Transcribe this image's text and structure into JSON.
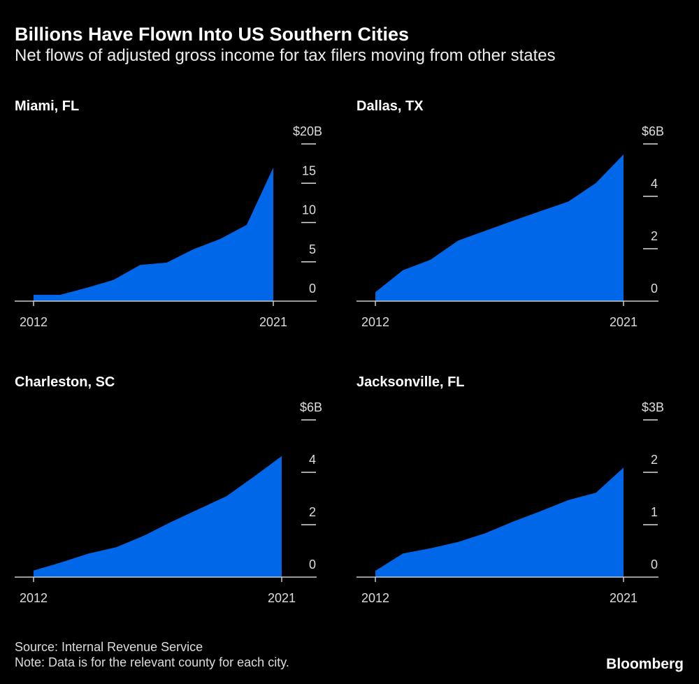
{
  "title": "Billions Have Flown Into US Southern Cities",
  "subtitle": "Net flows of adjusted gross income for tax filers moving from other states",
  "source": "Source: Internal Revenue Service",
  "note": "Note: Data is for the relevant county for each city.",
  "brand": "Bloomberg",
  "fill_color": "#0068e8",
  "chart_data": [
    {
      "type": "area",
      "title": "Miami, FL",
      "x": [
        2012,
        2013,
        2014,
        2015,
        2016,
        2017,
        2018,
        2019,
        2020,
        2021
      ],
      "values": [
        0.8,
        0.8,
        1.7,
        2.7,
        4.6,
        4.9,
        6.6,
        7.9,
        9.7,
        17.0
      ],
      "ylim": [
        0,
        20
      ],
      "yticks": [
        0,
        5,
        10,
        15,
        20
      ],
      "ytick_labels": [
        "0",
        "5",
        "10",
        "15",
        "$20B"
      ],
      "xtick_labels": [
        "2012",
        "2021"
      ],
      "grid": false
    },
    {
      "type": "area",
      "title": "Dallas, TX",
      "x": [
        2012,
        2013,
        2014,
        2015,
        2016,
        2017,
        2018,
        2019,
        2020,
        2021
      ],
      "values": [
        0.34,
        1.18,
        1.58,
        2.31,
        2.69,
        3.07,
        3.44,
        3.8,
        4.51,
        5.6
      ],
      "ylim": [
        0,
        6
      ],
      "yticks": [
        0,
        2,
        4,
        6
      ],
      "ytick_labels": [
        "0",
        "2",
        "4",
        "$6B"
      ],
      "xtick_labels": [
        "2012",
        "2021"
      ],
      "grid": false
    },
    {
      "type": "area",
      "title": "Charleston, SC",
      "x": [
        2012,
        2013,
        2014,
        2015,
        2016,
        2017,
        2018,
        2019,
        2020,
        2021
      ],
      "values": [
        0.25,
        0.56,
        0.9,
        1.14,
        1.58,
        2.11,
        2.6,
        3.09,
        3.84,
        4.62
      ],
      "ylim": [
        0,
        6
      ],
      "yticks": [
        0,
        2,
        4,
        6
      ],
      "ytick_labels": [
        "0",
        "2",
        "4",
        "$6B"
      ],
      "xtick_labels": [
        "2012",
        "2021"
      ],
      "grid": false
    },
    {
      "type": "area",
      "title": "Jacksonville, FL",
      "x": [
        2012,
        2013,
        2014,
        2015,
        2016,
        2017,
        2018,
        2019,
        2020,
        2021
      ],
      "values": [
        0.12,
        0.45,
        0.55,
        0.67,
        0.84,
        1.06,
        1.26,
        1.47,
        1.61,
        2.09
      ],
      "ylim": [
        0,
        3
      ],
      "yticks": [
        0,
        1,
        2,
        3
      ],
      "ytick_labels": [
        "0",
        "1",
        "2",
        "$3B"
      ],
      "xtick_labels": [
        "2012",
        "2021"
      ],
      "grid": false
    }
  ]
}
